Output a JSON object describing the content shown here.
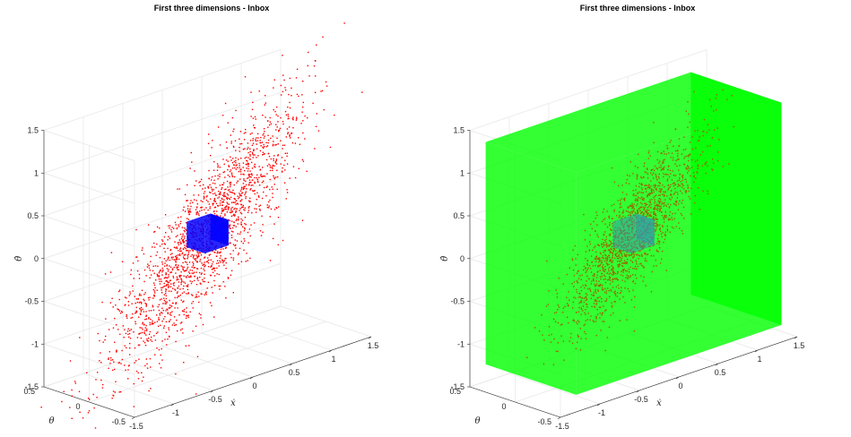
{
  "chart_data": [
    {
      "type": "scatter",
      "title": "First three dimensions - Inbox",
      "view": "3d",
      "grid": true,
      "xlabel": "ẋ",
      "ylabel": "θ",
      "zlabel": "θ̇",
      "xlim": [
        -1.5,
        1.5
      ],
      "ylim": [
        -0.5,
        0.5
      ],
      "zlim": [
        -1.5,
        1.5
      ],
      "x_ticks": [
        "-1.5",
        "-1",
        "-0.5",
        "0",
        "0.5",
        "1",
        "1.5"
      ],
      "y_ticks": [
        "-0.5",
        "0",
        "0.5"
      ],
      "z_ticks": [
        "-1.5",
        "-1",
        "-0.5",
        "0",
        "0.5",
        "1",
        "1.5"
      ],
      "series": [
        {
          "marker": "point",
          "color": "#ff0000",
          "cloud": {
            "center": [
              0,
              0,
              0
            ],
            "spread_major": 0.55,
            "spread_minor": 0.12,
            "count": 2000,
            "trend": "z ≈ 1.1·x"
          }
        },
        {
          "marker": "box",
          "color": "#0000ff",
          "box": {
            "x": [
              -0.15,
              0.15
            ],
            "y": [
              -0.1,
              0.1
            ],
            "z": [
              -0.15,
              0.15
            ]
          }
        }
      ]
    },
    {
      "type": "scatter",
      "title": "First three dimensions - Inbox",
      "view": "3d",
      "grid": true,
      "xlabel": "ẋ",
      "ylabel": "θ",
      "zlabel": "θ̇",
      "xlim": [
        -1.5,
        1.5
      ],
      "ylim": [
        -0.5,
        0.5
      ],
      "zlim": [
        -1.5,
        1.5
      ],
      "x_ticks": [
        "-1.5",
        "-1",
        "-0.5",
        "0",
        "0.5",
        "1",
        "1.5"
      ],
      "y_ticks": [
        "-0.5",
        "0",
        "0.5"
      ],
      "z_ticks": [
        "-1.5",
        "-1",
        "-0.5",
        "0",
        "0.5",
        "1",
        "1.5"
      ],
      "series": [
        {
          "marker": "box",
          "color": "#00ff00",
          "box": {
            "x": [
              -1.3,
              1.3
            ],
            "y": [
              -0.5,
              0.5
            ],
            "z": [
              -1.3,
              1.3
            ]
          }
        },
        {
          "marker": "point",
          "color": "#996600",
          "cloud": {
            "center": [
              0,
              0,
              0
            ],
            "spread_major": 0.38,
            "spread_minor": 0.1,
            "count": 1700,
            "trend": "z ≈ 1.1·x"
          }
        },
        {
          "marker": "box",
          "color": "#3399aa",
          "box": {
            "x": [
              -0.15,
              0.15
            ],
            "y": [
              -0.1,
              0.1
            ],
            "z": [
              -0.15,
              0.15
            ]
          }
        }
      ]
    }
  ]
}
